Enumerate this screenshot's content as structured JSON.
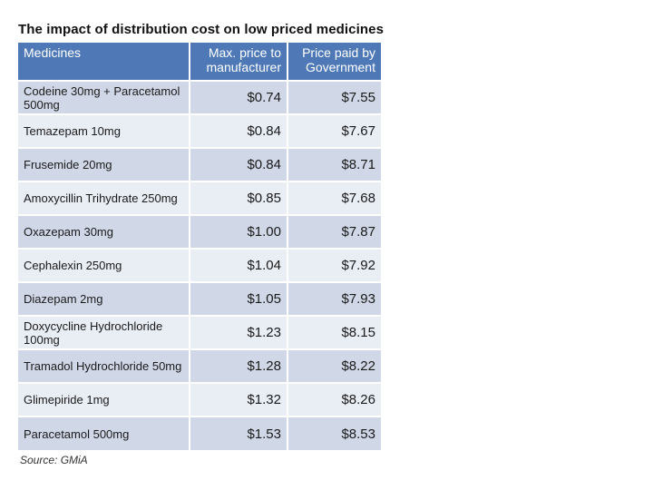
{
  "chart_data": {
    "type": "table",
    "title": "The impact of distribution cost on low priced medicines",
    "columns": [
      "Medicines",
      "Max. price to manufacturer",
      "Price paid by Government"
    ],
    "rows": [
      {
        "medicine": "Codeine 30mg + Paracetamol 500mg",
        "max_price": "$0.74",
        "gov_price": "$7.55"
      },
      {
        "medicine": "Temazepam 10mg",
        "max_price": "$0.84",
        "gov_price": "$7.67"
      },
      {
        "medicine": "Frusemide 20mg",
        "max_price": "$0.84",
        "gov_price": "$8.71"
      },
      {
        "medicine": "Amoxycillin Trihydrate 250mg",
        "max_price": "$0.85",
        "gov_price": "$7.68"
      },
      {
        "medicine": "Oxazepam 30mg",
        "max_price": "$1.00",
        "gov_price": "$7.87"
      },
      {
        "medicine": "Cephalexin 250mg",
        "max_price": "$1.04",
        "gov_price": "$7.92"
      },
      {
        "medicine": "Diazepam 2mg",
        "max_price": "$1.05",
        "gov_price": "$7.93"
      },
      {
        "medicine": "Doxycycline Hydrochloride 100mg",
        "max_price": "$1.23",
        "gov_price": "$8.15"
      },
      {
        "medicine": "Tramadol Hydrochloride 50mg",
        "max_price": "$1.28",
        "gov_price": "$8.22"
      },
      {
        "medicine": "Glimepiride 1mg",
        "max_price": "$1.32",
        "gov_price": "$8.26"
      },
      {
        "medicine": "Paracetamol 500mg",
        "max_price": "$1.53",
        "gov_price": "$8.53"
      }
    ],
    "source": "Source: GMiA"
  },
  "colors": {
    "header_bg": "#4e79b6",
    "row_odd": "#d0d8e8",
    "row_even": "#e9edf4"
  }
}
